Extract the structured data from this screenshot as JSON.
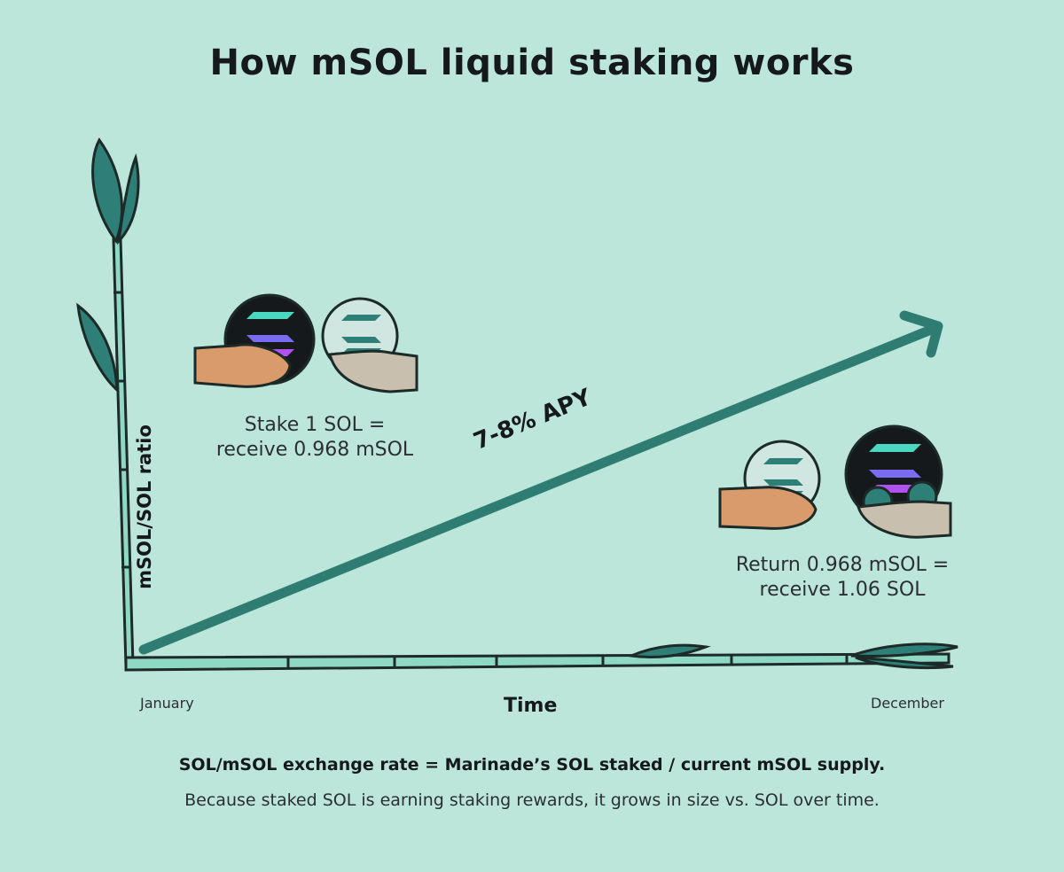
{
  "title": "How mSOL liquid staking works",
  "y_axis_label": "mSOL/SOL ratio",
  "x_axis_label": "Time",
  "x_ticks": {
    "start": "January",
    "end": "December"
  },
  "apy_label": "7-8% APY",
  "stake_caption": {
    "line1": "Stake 1 SOL =",
    "line2": "receive 0.968 mSOL"
  },
  "return_caption": {
    "line1": "Return 0.968 mSOL =",
    "line2": "receive 1.06 SOL"
  },
  "footer": {
    "formula": "SOL/mSOL exchange rate = Marinade’s SOL staked / current mSOL supply.",
    "note": "Because staked SOL is earning staking rewards, it grows in size vs. SOL over time."
  },
  "colors": {
    "background": "#bce6da",
    "arrow": "#2f7d72",
    "bamboo": "#8fd8c3",
    "leaf": "#2e7f77",
    "hand_tan": "#d99b6c",
    "hand_grey": "#c9bfae"
  }
}
